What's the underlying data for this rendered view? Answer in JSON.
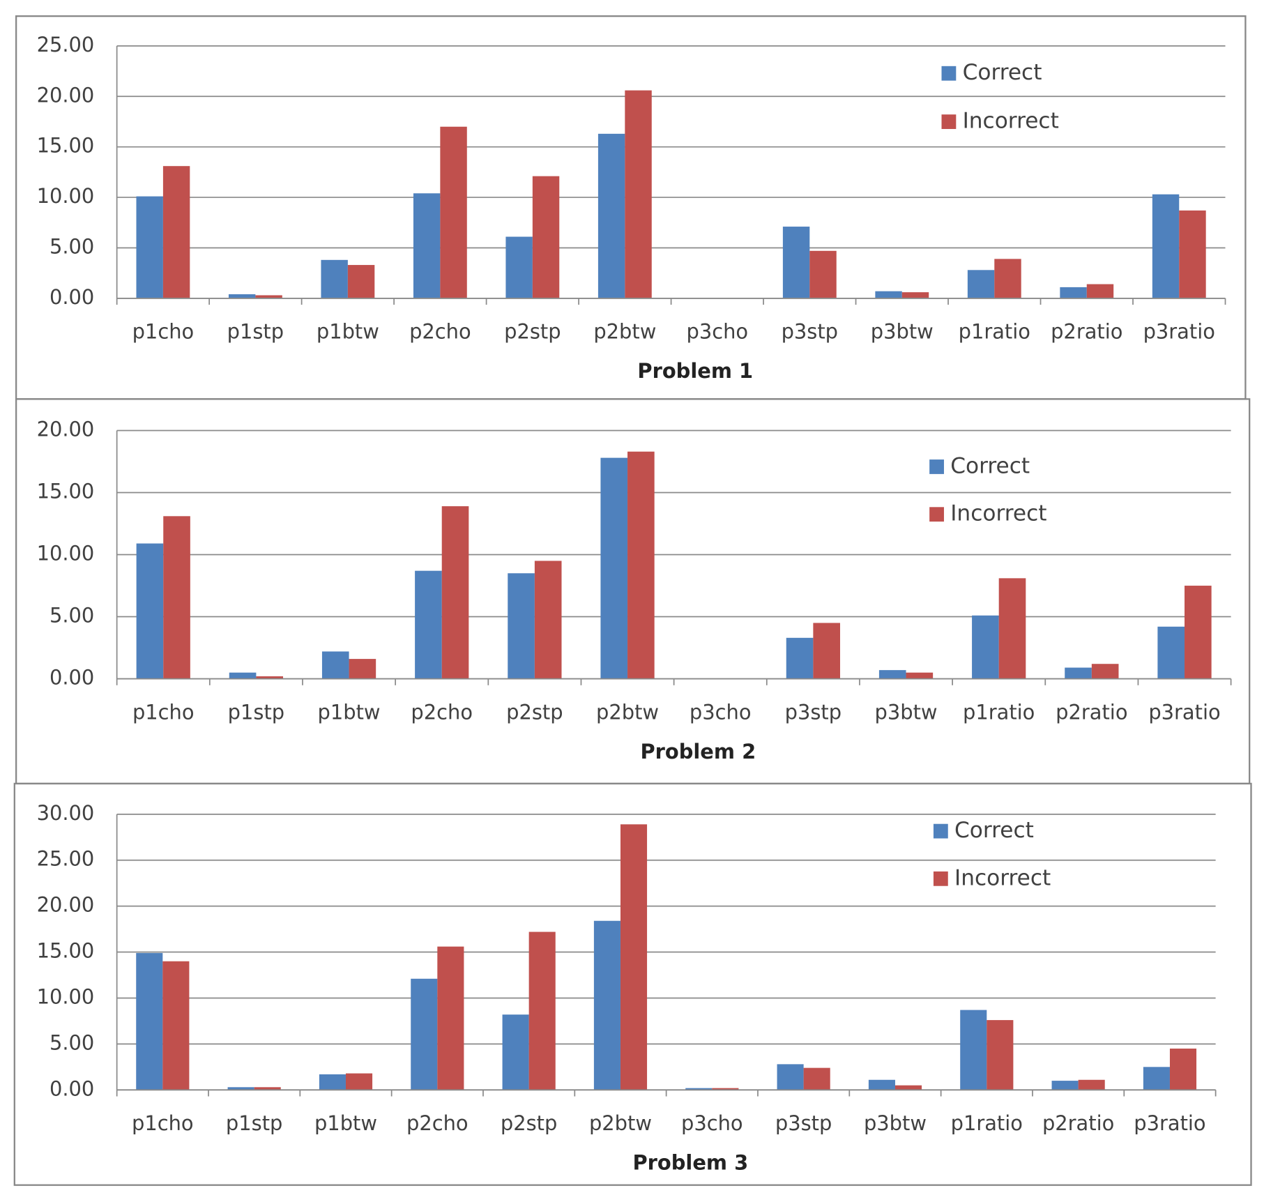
{
  "chart_data": [
    {
      "type": "bar",
      "x_label": "Problem 1",
      "categories": [
        "p1cho",
        "p1stp",
        "p1btw",
        "p2cho",
        "p2stp",
        "p2btw",
        "p3cho",
        "p3stp",
        "p3btw",
        "p1ratio",
        "p2ratio",
        "p3ratio"
      ],
      "series": [
        {
          "name": "Correct",
          "color": "#4f81bd",
          "values": [
            10.1,
            0.4,
            3.8,
            10.4,
            6.1,
            16.3,
            0,
            7.1,
            0.7,
            2.8,
            1.1,
            10.3
          ]
        },
        {
          "name": "Incorrect",
          "color": "#c0504d",
          "values": [
            13.1,
            0.3,
            3.3,
            17.0,
            12.1,
            20.6,
            0,
            4.7,
            0.6,
            3.9,
            1.4,
            8.7
          ]
        }
      ],
      "ylim": [
        0,
        25
      ],
      "yticks": [
        {
          "value": 0,
          "label": "0.00"
        },
        {
          "value": 5,
          "label": "5.00"
        },
        {
          "value": 10,
          "label": "10.00"
        },
        {
          "value": 15,
          "label": "15.00"
        },
        {
          "value": 20,
          "label": "20.00"
        },
        {
          "value": 25,
          "label": "25.00"
        }
      ],
      "grid": true,
      "legend": "upper right"
    },
    {
      "type": "bar",
      "x_label": "Problem 2",
      "categories": [
        "p1cho",
        "p1stp",
        "p1btw",
        "p2cho",
        "p2stp",
        "p2btw",
        "p3cho",
        "p3stp",
        "p3btw",
        "p1ratio",
        "p2ratio",
        "p3ratio"
      ],
      "series": [
        {
          "name": "Correct",
          "color": "#4f81bd",
          "values": [
            10.9,
            0.5,
            2.2,
            8.7,
            8.5,
            17.8,
            0,
            3.3,
            0.7,
            5.1,
            0.9,
            4.2
          ]
        },
        {
          "name": "Incorrect",
          "color": "#c0504d",
          "values": [
            13.1,
            0.2,
            1.6,
            13.9,
            9.5,
            18.3,
            0,
            4.5,
            0.5,
            8.1,
            1.2,
            7.5
          ]
        }
      ],
      "ylim": [
        0,
        20
      ],
      "yticks": [
        {
          "value": 0,
          "label": "0.00"
        },
        {
          "value": 5,
          "label": "5.00"
        },
        {
          "value": 10,
          "label": "10.00"
        },
        {
          "value": 15,
          "label": "15.00"
        },
        {
          "value": 20,
          "label": "20.00"
        }
      ],
      "grid": true,
      "legend": "upper right"
    },
    {
      "type": "bar",
      "x_label": "Problem 3",
      "categories": [
        "p1cho",
        "p1stp",
        "p1btw",
        "p2cho",
        "p2stp",
        "p2btw",
        "p3cho",
        "p3stp",
        "p3btw",
        "p1ratio",
        "p2ratio",
        "p3ratio"
      ],
      "series": [
        {
          "name": "Correct",
          "color": "#4f81bd",
          "values": [
            14.9,
            0.3,
            1.7,
            12.1,
            8.2,
            18.4,
            0.2,
            2.8,
            1.1,
            8.7,
            1.0,
            2.5
          ]
        },
        {
          "name": "Incorrect",
          "color": "#c0504d",
          "values": [
            14.0,
            0.3,
            1.8,
            15.6,
            17.2,
            28.9,
            0.2,
            2.4,
            0.5,
            7.6,
            1.1,
            4.5
          ]
        }
      ],
      "ylim": [
        0,
        30
      ],
      "yticks": [
        {
          "value": 0,
          "label": "0.00"
        },
        {
          "value": 5,
          "label": "5.00"
        },
        {
          "value": 10,
          "label": "10.00"
        },
        {
          "value": 15,
          "label": "15.00"
        },
        {
          "value": 20,
          "label": "20.00"
        },
        {
          "value": 25,
          "label": "25.00"
        },
        {
          "value": 30,
          "label": "30.00"
        }
      ],
      "grid": true,
      "legend": "upper right"
    }
  ]
}
